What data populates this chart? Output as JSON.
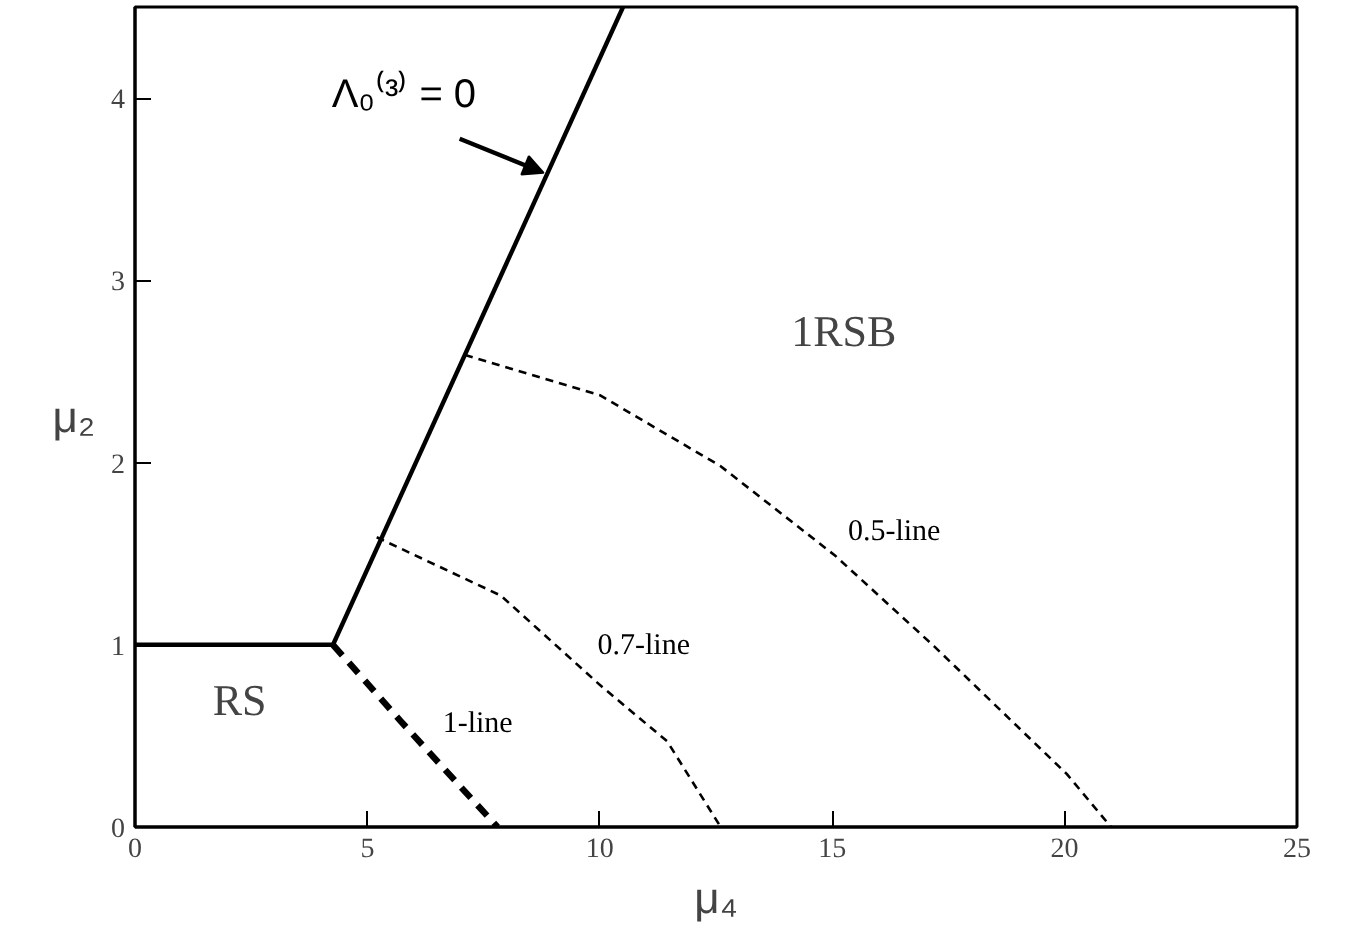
{
  "chart_data": {
    "type": "line",
    "xlabel": "μ₄",
    "ylabel": "μ₂",
    "xlim": [
      0,
      25
    ],
    "ylim": [
      0,
      4.5
    ],
    "xticks": [
      0,
      5,
      10,
      15,
      20,
      25
    ],
    "yticks": [
      0,
      1,
      2,
      3,
      4
    ],
    "grid": false,
    "marker": "none",
    "series": [
      {
        "color": "#000000",
        "line_style": "solid",
        "x": [
          0,
          4.26
        ],
        "values": [
          1,
          1
        ]
      },
      {
        "name": "Λ₀⁽³⁾ = 0",
        "color": "#000000",
        "line_style": "solid",
        "x": [
          4.26,
          10.5
        ],
        "values": [
          1,
          4.5
        ]
      },
      {
        "name": "1-line",
        "color": "#000000",
        "line_style": "dashed",
        "x": [
          4.26,
          5.72,
          7.15,
          7.8
        ],
        "values": [
          1,
          0.58,
          0.18,
          0
        ]
      },
      {
        "name": "0.7-line",
        "color": "#000000",
        "line_style": "dotted",
        "x": [
          5.2,
          7.87,
          10.0,
          11.45,
          12.6
        ],
        "values": [
          1.59,
          1.27,
          0.78,
          0.47,
          0
        ]
      },
      {
        "name": "0.5-line",
        "color": "#000000",
        "line_style": "dotted",
        "x": [
          7.1,
          10.0,
          12.6,
          15.06,
          17.2,
          20.05,
          21.0
        ],
        "values": [
          2.59,
          2.37,
          1.98,
          1.49,
          0.99,
          0.29,
          0
        ]
      }
    ],
    "annotations": [
      "RS",
      "1RSB"
    ]
  }
}
